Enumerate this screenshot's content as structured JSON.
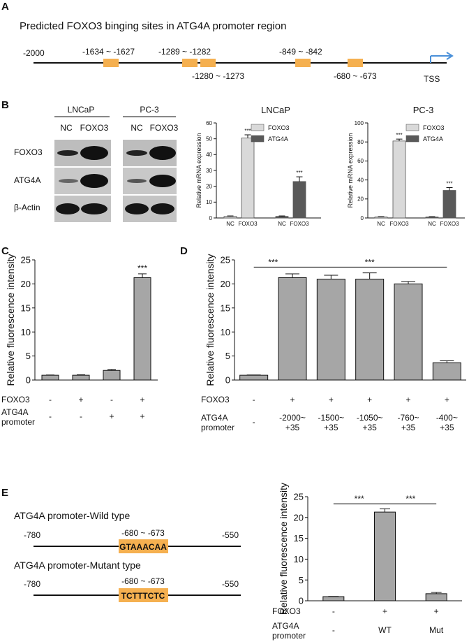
{
  "panels": {
    "A": {
      "letter": "A",
      "title": "Predicted FOXO3 binging sites in ATG4A promoter region",
      "start_label": "-2000",
      "tss_label": "TSS",
      "sites_above": [
        "-1634 ~ -1627",
        "-1289 ~ -1282",
        "-849 ~ -842"
      ],
      "sites_below": [
        "-1280 ~ -1273",
        "-680 ~ -673"
      ]
    },
    "B": {
      "letter": "B",
      "blot": {
        "cell_lines": [
          "LNCaP",
          "PC-3"
        ],
        "lanes": [
          "NC",
          "FOXO3"
        ],
        "rows": [
          "FOXO3",
          "ATG4A",
          "β-Actin"
        ]
      }
    },
    "C": {
      "letter": "C"
    },
    "D": {
      "letter": "D"
    },
    "E": {
      "letter": "E",
      "wild": {
        "title": "ATG4A promoter-Wild type",
        "left": "-780",
        "right": "-550",
        "site": "-680 ~ -673",
        "seq": "GTAAACAA"
      },
      "mutant": {
        "title": "ATG4A promoter-Mutant type",
        "left": "-780",
        "right": "-550",
        "site": "-680 ~ -673",
        "seq": "TCTTTCTC"
      }
    }
  },
  "chart_data": [
    {
      "id": "B-LNCaP",
      "type": "bar",
      "title": "LNCaP",
      "ylabel": "Relative mRNA expression",
      "ylim": [
        0,
        60
      ],
      "yticks": [
        0,
        10,
        20,
        30,
        40,
        50,
        60
      ],
      "groups": [
        {
          "bars": [
            {
              "label": "NC",
              "value": 1,
              "err": 0.3,
              "series": 0
            },
            {
              "label": "FOXO3",
              "value": 50.5,
              "err": 2,
              "series": 0,
              "sig": "***"
            }
          ]
        },
        {
          "bars": [
            {
              "label": "NC",
              "value": 1,
              "err": 0.3,
              "series": 1
            },
            {
              "label": "FOXO3",
              "value": 23,
              "err": 3,
              "series": 1,
              "sig": "***"
            }
          ]
        }
      ],
      "legend": [
        {
          "name": "FOXO3",
          "color": "#d9d9d9"
        },
        {
          "name": "ATG4A",
          "color": "#595959"
        }
      ]
    },
    {
      "id": "B-PC3",
      "type": "bar",
      "title": "PC-3",
      "ylabel": "Relative mRNA expression",
      "ylim": [
        0,
        100
      ],
      "yticks": [
        0,
        20,
        40,
        60,
        80,
        100
      ],
      "groups": [
        {
          "bars": [
            {
              "label": "NC",
              "value": 1,
              "err": 0.4,
              "series": 0
            },
            {
              "label": "FOXO3",
              "value": 81,
              "err": 2,
              "series": 0,
              "sig": "***"
            }
          ]
        },
        {
          "bars": [
            {
              "label": "NC",
              "value": 1,
              "err": 0.4,
              "series": 1
            },
            {
              "label": "FOXO3",
              "value": 29,
              "err": 3,
              "series": 1,
              "sig": "***"
            }
          ]
        }
      ],
      "legend": [
        {
          "name": "FOXO3",
          "color": "#d9d9d9"
        },
        {
          "name": "ATG4A",
          "color": "#595959"
        }
      ]
    },
    {
      "id": "C",
      "type": "bar",
      "ylabel": "Relative fluorescence intensity",
      "ylim": [
        0,
        25
      ],
      "yticks": [
        0,
        5,
        10,
        15,
        20,
        25
      ],
      "values": [
        1,
        1,
        2,
        21.3
      ],
      "errors": [
        0.05,
        0.1,
        0.2,
        0.8
      ],
      "sig": [
        null,
        null,
        null,
        "***"
      ],
      "table": [
        {
          "label": "FOXO3",
          "cells": [
            "-",
            "+",
            "-",
            "+"
          ]
        },
        {
          "label": "ATG4A\npromoter",
          "cells": [
            "-",
            "-",
            "+",
            "+"
          ]
        }
      ]
    },
    {
      "id": "D",
      "type": "bar",
      "ylabel": "Relative fluorescence intensity",
      "ylim": [
        0,
        25
      ],
      "yticks": [
        0,
        5,
        10,
        15,
        20,
        25
      ],
      "values": [
        1,
        21.3,
        21,
        21,
        20,
        3.6
      ],
      "errors": [
        0.05,
        0.8,
        0.8,
        1.3,
        0.5,
        0.4
      ],
      "brackets": [
        {
          "from": 0,
          "to": 1,
          "label": "***",
          "y": 23.5
        },
        {
          "from": 1,
          "to": 5,
          "label": "***",
          "y": 23.5
        }
      ],
      "table": [
        {
          "label": "FOXO3",
          "cells": [
            "-",
            "+",
            "+",
            "+",
            "+",
            "+"
          ]
        },
        {
          "label": "ATG4A\npromoter",
          "cells": [
            "-",
            "-2000~\n+35",
            "-1500~\n+35",
            "-1050~\n+35",
            "-760~\n+35",
            "-400~\n+35"
          ]
        }
      ]
    },
    {
      "id": "E",
      "type": "bar",
      "ylabel": "Relative fluorescence intensity",
      "ylim": [
        0,
        25
      ],
      "yticks": [
        0,
        5,
        10,
        15,
        20,
        25
      ],
      "values": [
        1,
        21.3,
        1.7
      ],
      "errors": [
        0.05,
        0.8,
        0.3
      ],
      "brackets": [
        {
          "from": 0,
          "to": 1,
          "label": "***",
          "y": 23.3
        },
        {
          "from": 1,
          "to": 2,
          "label": "***",
          "y": 23.3
        }
      ],
      "table": [
        {
          "label": "FOXO3",
          "cells": [
            "-",
            "+",
            "+"
          ]
        },
        {
          "label": "ATG4A\npromoter",
          "cells": [
            "-",
            "WT",
            "Mut"
          ]
        }
      ]
    }
  ]
}
